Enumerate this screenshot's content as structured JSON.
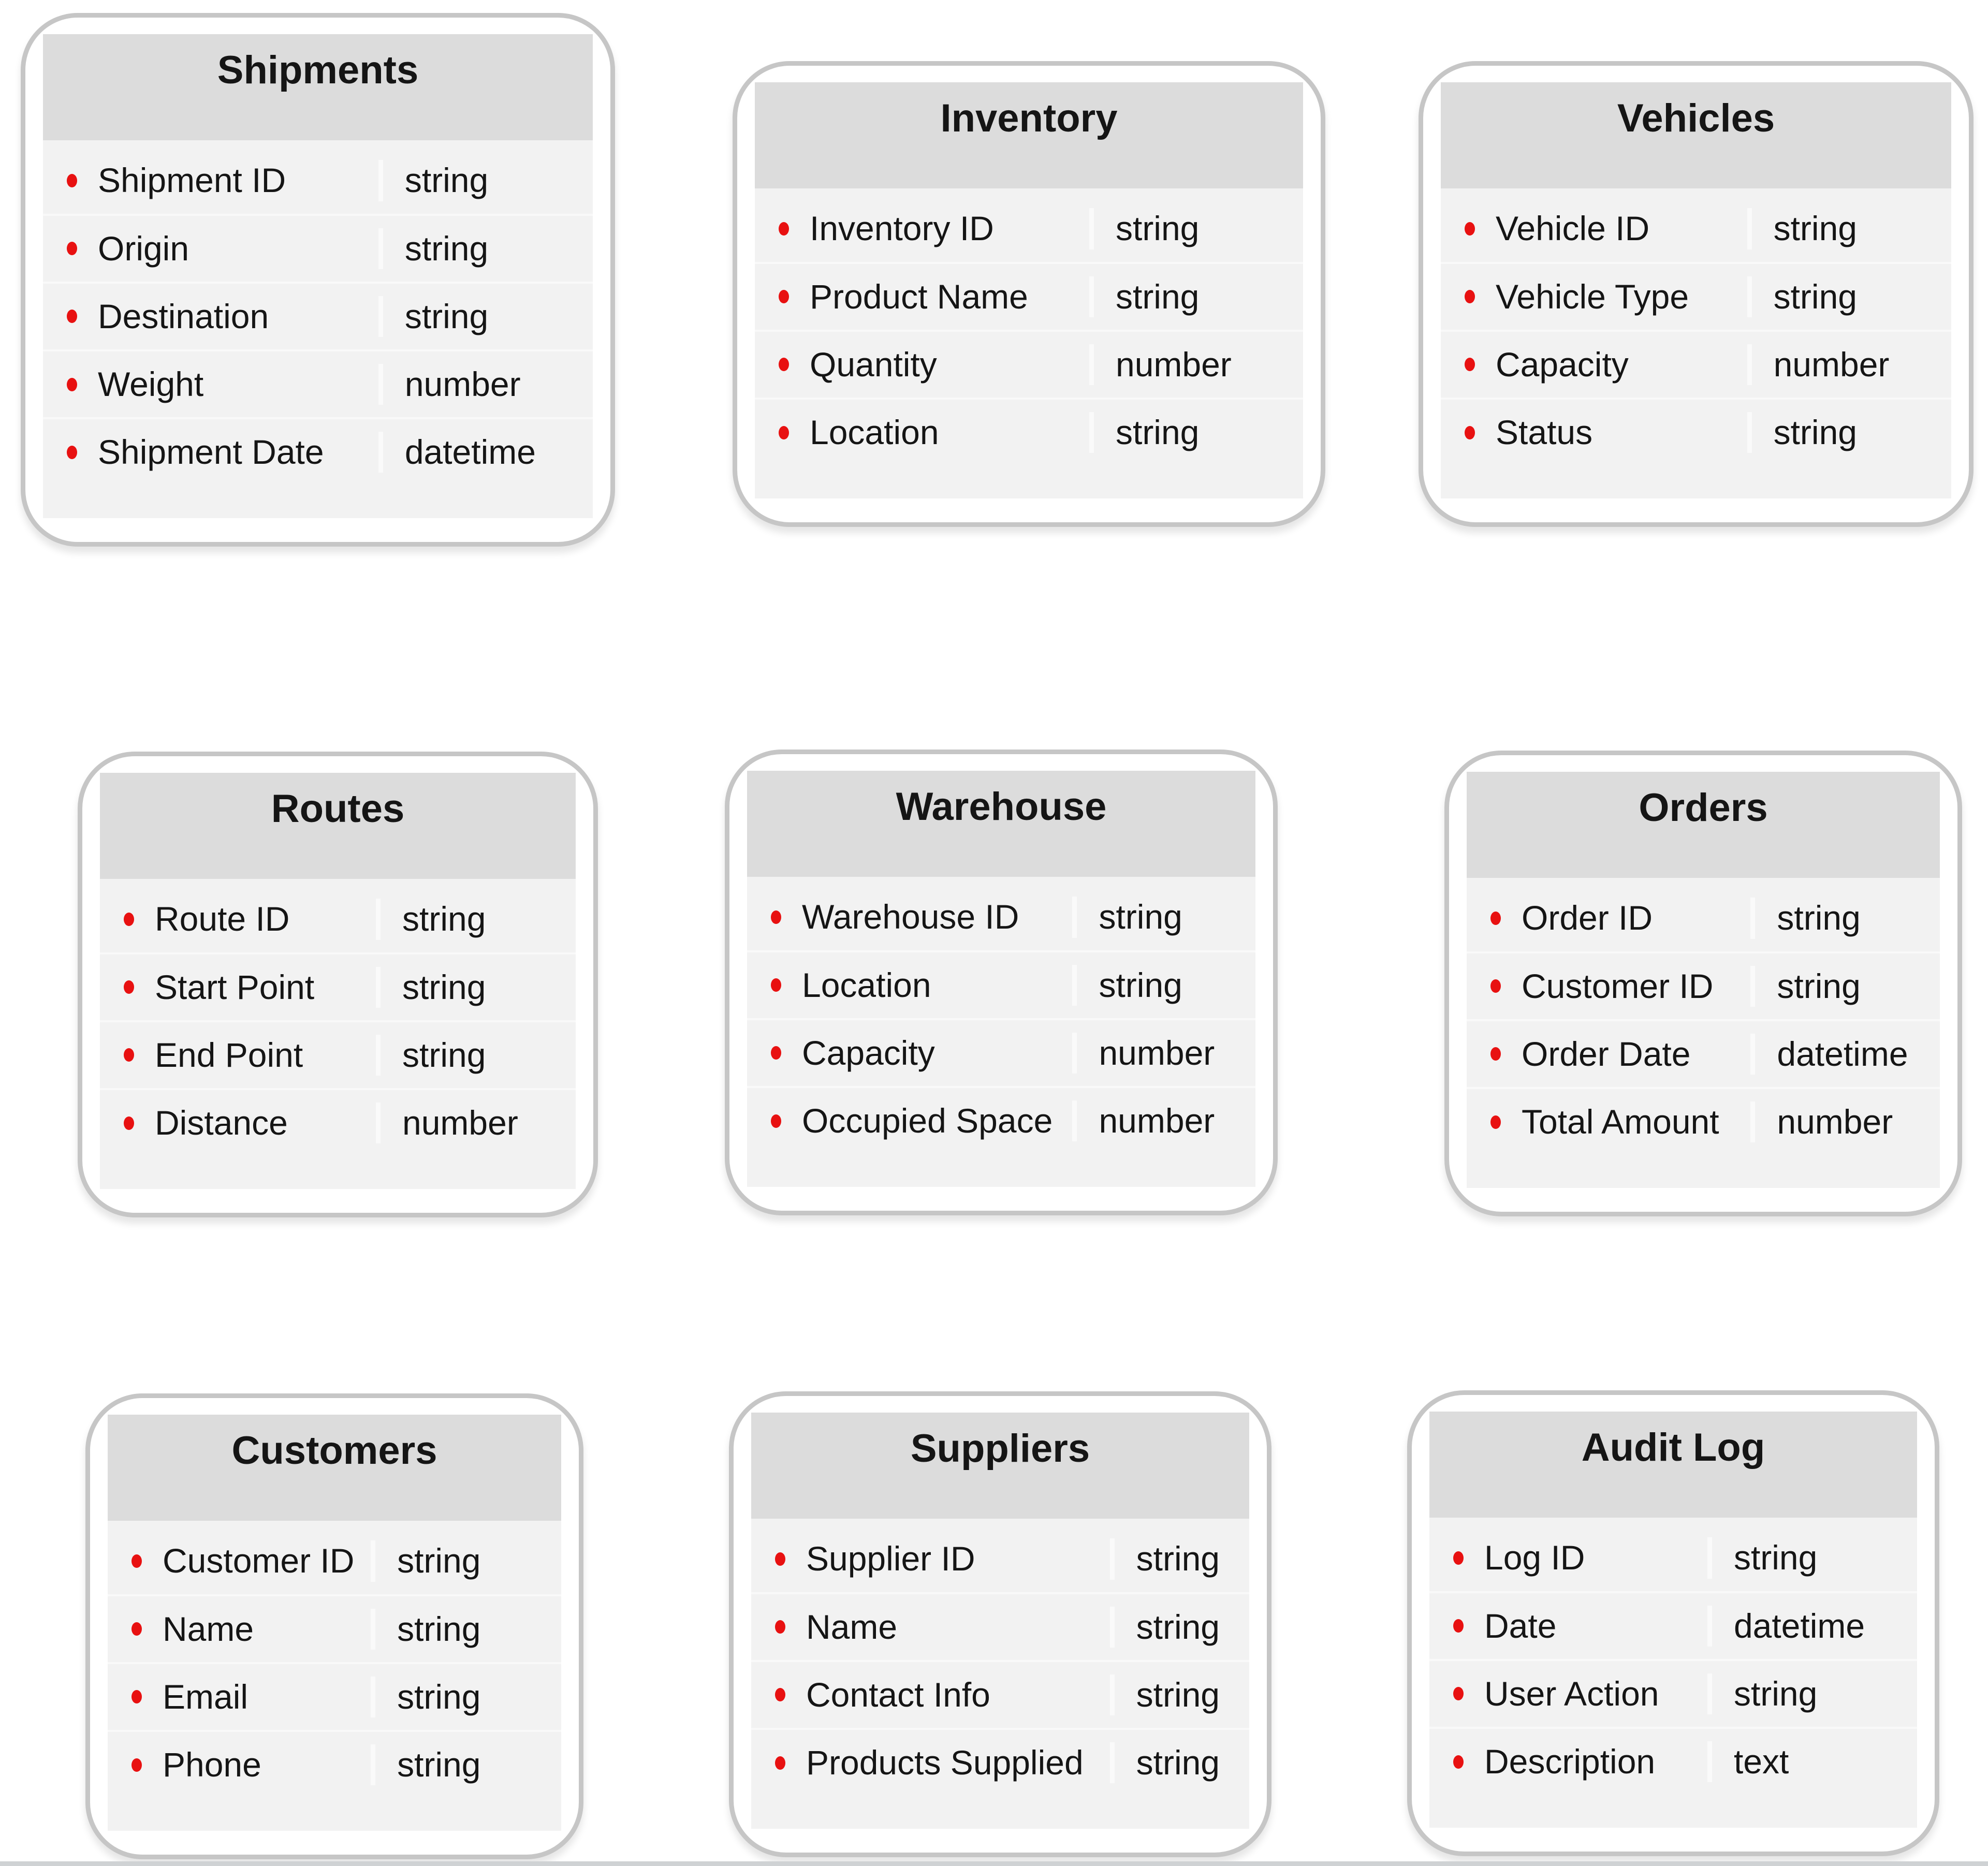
{
  "colors": {
    "header_bg": "#dcdcdc",
    "body_bg": "#f2f2f2",
    "card_border": "#c6c6c6",
    "bullet": "#e81111",
    "text": "#151515",
    "bottom_bar": "#cfd2d4"
  },
  "diagram": {
    "tables": [
      {
        "id": "shipments",
        "title": "Shipments",
        "fields": [
          {
            "name": "Shipment ID",
            "type": "string"
          },
          {
            "name": "Origin",
            "type": "string"
          },
          {
            "name": "Destination",
            "type": "string"
          },
          {
            "name": "Weight",
            "type": "number"
          },
          {
            "name": "Shipment Date",
            "type": "datetime"
          }
        ]
      },
      {
        "id": "inventory",
        "title": "Inventory",
        "fields": [
          {
            "name": "Inventory ID",
            "type": "string"
          },
          {
            "name": "Product Name",
            "type": "string"
          },
          {
            "name": "Quantity",
            "type": "number"
          },
          {
            "name": "Location",
            "type": "string"
          }
        ]
      },
      {
        "id": "vehicles",
        "title": "Vehicles",
        "fields": [
          {
            "name": "Vehicle ID",
            "type": "string"
          },
          {
            "name": "Vehicle Type",
            "type": "string"
          },
          {
            "name": "Capacity",
            "type": "number"
          },
          {
            "name": "Status",
            "type": "string"
          }
        ]
      },
      {
        "id": "routes",
        "title": "Routes",
        "fields": [
          {
            "name": "Route ID",
            "type": "string"
          },
          {
            "name": "Start Point",
            "type": "string"
          },
          {
            "name": "End Point",
            "type": "string"
          },
          {
            "name": "Distance",
            "type": "number"
          }
        ]
      },
      {
        "id": "warehouse",
        "title": "Warehouse",
        "fields": [
          {
            "name": "Warehouse ID",
            "type": "string"
          },
          {
            "name": "Location",
            "type": "string"
          },
          {
            "name": "Capacity",
            "type": "number"
          },
          {
            "name": "Occupied Space",
            "type": "number"
          }
        ]
      },
      {
        "id": "orders",
        "title": "Orders",
        "fields": [
          {
            "name": "Order ID",
            "type": "string"
          },
          {
            "name": "Customer ID",
            "type": "string"
          },
          {
            "name": "Order Date",
            "type": "datetime"
          },
          {
            "name": "Total Amount",
            "type": "number"
          }
        ]
      },
      {
        "id": "customers",
        "title": "Customers",
        "fields": [
          {
            "name": "Customer ID",
            "type": "string"
          },
          {
            "name": "Name",
            "type": "string"
          },
          {
            "name": "Email",
            "type": "string"
          },
          {
            "name": "Phone",
            "type": "string"
          }
        ]
      },
      {
        "id": "suppliers",
        "title": "Suppliers",
        "fields": [
          {
            "name": "Supplier ID",
            "type": "string"
          },
          {
            "name": "Name",
            "type": "string"
          },
          {
            "name": "Contact Info",
            "type": "string"
          },
          {
            "name": "Products Supplied",
            "type": "string"
          }
        ]
      },
      {
        "id": "audit-log",
        "title": "Audit Log",
        "fields": [
          {
            "name": "Log ID",
            "type": "string"
          },
          {
            "name": "Date",
            "type": "datetime"
          },
          {
            "name": "User Action",
            "type": "string"
          },
          {
            "name": "Description",
            "type": "text"
          }
        ]
      }
    ]
  }
}
